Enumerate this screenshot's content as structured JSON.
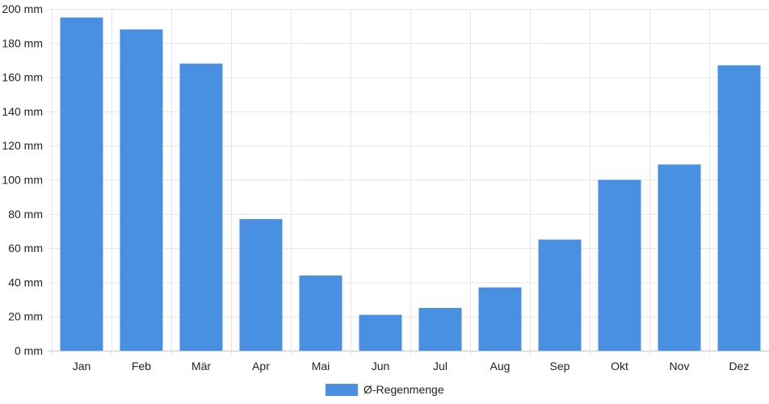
{
  "chart_data": {
    "type": "bar",
    "categories": [
      "Jan",
      "Feb",
      "Mär",
      "Apr",
      "Mai",
      "Jun",
      "Jul",
      "Aug",
      "Sep",
      "Okt",
      "Nov",
      "Dez"
    ],
    "series": [
      {
        "name": "Ø-Regenmenge",
        "values": [
          195,
          188,
          168,
          77,
          44,
          21,
          25,
          37,
          65,
          100,
          109,
          167
        ],
        "color": "#4a90e2"
      }
    ],
    "y_unit": "mm",
    "y_ticks": [
      "0 mm",
      "20 mm",
      "40 mm",
      "60 mm",
      "80 mm",
      "100 mm",
      "120 mm",
      "140 mm",
      "160 mm",
      "180 mm",
      "200 mm"
    ],
    "ylim": [
      0,
      200
    ],
    "grid": true,
    "legend_position": "bottom-center",
    "title": "",
    "xlabel": "",
    "ylabel": ""
  }
}
